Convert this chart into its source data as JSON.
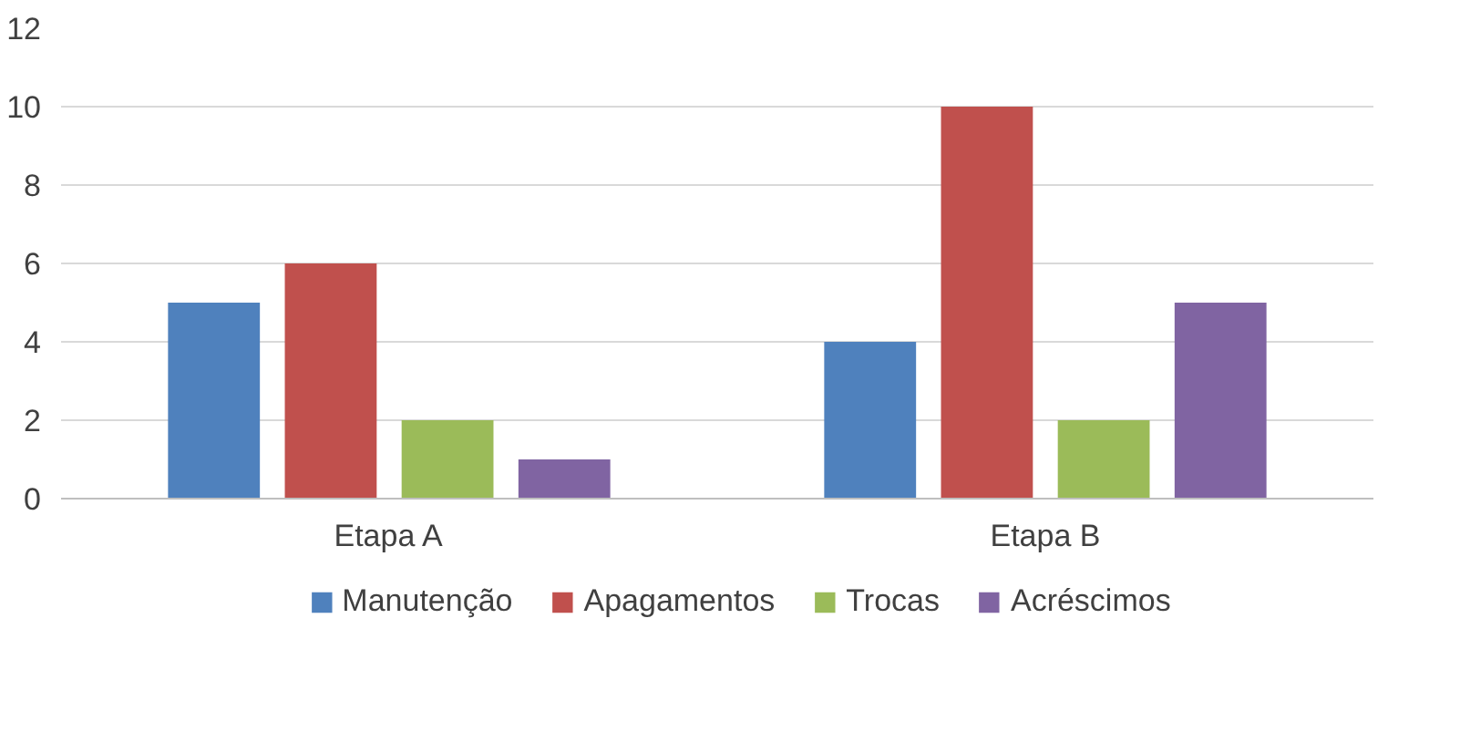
{
  "chart_data": {
    "type": "bar",
    "categories": [
      "Etapa A",
      "Etapa B"
    ],
    "series": [
      {
        "name": "Manutenção",
        "color": "#4f81bd",
        "values": [
          5,
          4
        ]
      },
      {
        "name": "Apagamentos",
        "color": "#c0504d",
        "values": [
          6,
          10
        ]
      },
      {
        "name": "Trocas",
        "color": "#9bbb59",
        "values": [
          2,
          2
        ]
      },
      {
        "name": "Acréscimos",
        "color": "#8064a2",
        "values": [
          1,
          5
        ]
      }
    ],
    "ylim": [
      0,
      12
    ],
    "yticks": [
      0,
      2,
      4,
      6,
      8,
      10,
      12
    ],
    "grid": "y",
    "legend": "bottom"
  }
}
